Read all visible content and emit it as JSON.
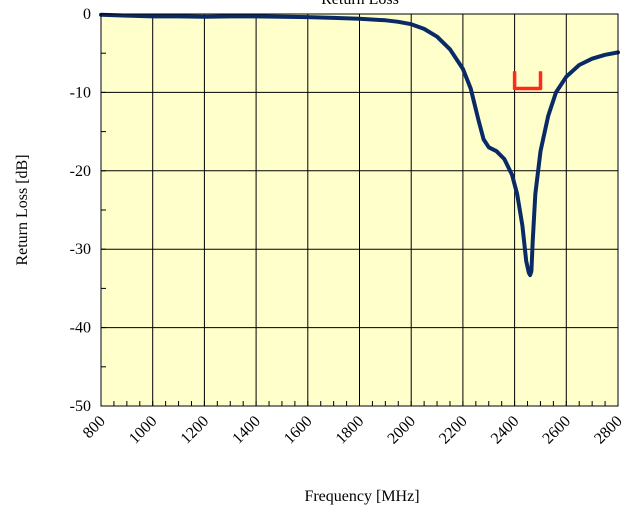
{
  "chart_data": {
    "type": "line",
    "title": "Return Loss",
    "xlabel": "Frequency [MHz]",
    "ylabel": "Return Loss [dB]",
    "xlim": [
      800,
      2800
    ],
    "ylim": [
      -50,
      0
    ],
    "xticks": [
      800,
      1000,
      1200,
      1400,
      1600,
      1800,
      2000,
      2200,
      2400,
      2600,
      2800
    ],
    "yticks": [
      0,
      -10,
      -20,
      -30,
      -40,
      -50
    ],
    "x_minor_step": 50,
    "y_minor_step": 5,
    "grid": true,
    "plot_background": "#ffffcc",
    "series": [
      {
        "color": "#0a2a66",
        "x": [
          800,
          900,
          1000,
          1100,
          1200,
          1300,
          1400,
          1500,
          1600,
          1700,
          1800,
          1900,
          1950,
          2000,
          2050,
          2100,
          2150,
          2200,
          2230,
          2260,
          2280,
          2300,
          2330,
          2360,
          2390,
          2410,
          2430,
          2445,
          2455,
          2460,
          2465,
          2470,
          2480,
          2500,
          2530,
          2560,
          2600,
          2650,
          2700,
          2750,
          2800
        ],
        "y": [
          -0.1,
          -0.2,
          -0.3,
          -0.3,
          -0.35,
          -0.3,
          -0.3,
          -0.35,
          -0.4,
          -0.5,
          -0.6,
          -0.8,
          -1.0,
          -1.3,
          -1.9,
          -2.9,
          -4.5,
          -7.0,
          -9.5,
          -13.5,
          -16.0,
          -17.0,
          -17.5,
          -18.5,
          -20.5,
          -23.0,
          -27.0,
          -31.5,
          -33.0,
          -33.3,
          -32.8,
          -29.0,
          -23.0,
          -17.5,
          -13.0,
          -10.0,
          -8.0,
          -6.5,
          -5.7,
          -5.2,
          -4.9
        ]
      },
      {
        "color": "#ff2a1a",
        "x": [
          2400,
          2400,
          2500,
          2500
        ],
        "y": [
          -7.3,
          -9.5,
          -9.5,
          -7.3
        ]
      }
    ]
  }
}
